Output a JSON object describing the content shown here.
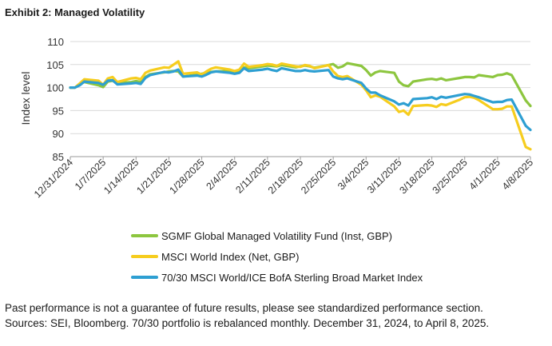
{
  "exhibit_title": "Exhibit 2: Managed Volatility",
  "chart_data": {
    "type": "line",
    "title": "Exhibit 2: Managed Volatility",
    "xlabel": "",
    "ylabel": "Index level",
    "ylim": [
      85,
      110
    ],
    "yticks": [
      85,
      90,
      95,
      100,
      105,
      110
    ],
    "grid": true,
    "x_start": "2024-12-31",
    "x_end": "2025-04-08",
    "x_ticks": [
      {
        "day": 0,
        "label": "12/31/2024"
      },
      {
        "day": 7,
        "label": "1/7/2025"
      },
      {
        "day": 14,
        "label": "1/14/2025"
      },
      {
        "day": 21,
        "label": "1/21/2025"
      },
      {
        "day": 28,
        "label": "1/28/2025"
      },
      {
        "day": 35,
        "label": "2/4/2025"
      },
      {
        "day": 42,
        "label": "2/11/2025"
      },
      {
        "day": 49,
        "label": "2/18/2025"
      },
      {
        "day": 56,
        "label": "2/25/2025"
      },
      {
        "day": 63,
        "label": "3/4/2025"
      },
      {
        "day": 70,
        "label": "3/11/2025"
      },
      {
        "day": 77,
        "label": "3/18/2025"
      },
      {
        "day": 84,
        "label": "3/25/2025"
      },
      {
        "day": 91,
        "label": "4/1/2025"
      },
      {
        "day": 98,
        "label": "4/8/2025"
      }
    ],
    "days": [
      0,
      1,
      2,
      3,
      6,
      7,
      8,
      9,
      10,
      13,
      14,
      15,
      16,
      17,
      20,
      21,
      22,
      23,
      24,
      27,
      28,
      29,
      30,
      31,
      34,
      35,
      36,
      37,
      38,
      41,
      42,
      43,
      44,
      45,
      48,
      49,
      50,
      51,
      52,
      55,
      56,
      57,
      58,
      59,
      62,
      63,
      64,
      65,
      66,
      69,
      70,
      71,
      72,
      73,
      76,
      77,
      78,
      79,
      80,
      83,
      84,
      85,
      86,
      87,
      90,
      91,
      92,
      93,
      94,
      97,
      98
    ],
    "series": [
      {
        "name": "SGMF Global Managed Volatility Fund (Inst, GBP)",
        "color": "#8dc63f",
        "values": [
          100.0,
          100.0,
          100.8,
          101.2,
          100.5,
          100.1,
          101.3,
          101.5,
          101.0,
          101.2,
          101.4,
          101.2,
          102.3,
          102.9,
          103.3,
          103.5,
          103.6,
          103.5,
          102.4,
          102.8,
          103.0,
          103.2,
          103.4,
          103.5,
          103.6,
          103.4,
          103.7,
          104.4,
          104.2,
          104.6,
          104.8,
          104.7,
          104.6,
          104.9,
          104.4,
          104.6,
          104.8,
          104.6,
          104.3,
          104.9,
          105.1,
          104.3,
          104.6,
          105.3,
          104.7,
          103.8,
          102.6,
          103.3,
          103.6,
          103.2,
          101.3,
          100.5,
          100.3,
          101.3,
          101.8,
          101.9,
          101.7,
          102.0,
          101.6,
          102.1,
          102.3,
          102.3,
          102.2,
          102.7,
          102.3,
          102.7,
          102.8,
          103.1,
          102.7,
          97.2,
          96.0
        ]
      },
      {
        "name": "MSCI World Index (Net, GBP)",
        "color": "#f6cd1e",
        "values": [
          100.0,
          100.0,
          100.9,
          101.8,
          101.5,
          100.6,
          102.0,
          102.3,
          101.2,
          102.0,
          102.1,
          101.8,
          103.2,
          103.7,
          104.4,
          104.3,
          105.0,
          105.7,
          103.0,
          103.3,
          102.8,
          103.5,
          104.1,
          104.4,
          103.9,
          103.6,
          103.9,
          105.2,
          104.5,
          104.9,
          105.1,
          105.0,
          104.7,
          105.2,
          104.6,
          104.5,
          104.9,
          104.7,
          104.2,
          104.9,
          103.5,
          102.5,
          102.3,
          102.5,
          100.6,
          99.4,
          97.9,
          98.3,
          98.0,
          95.9,
          94.7,
          95.0,
          94.1,
          96.0,
          96.2,
          96.1,
          95.8,
          96.4,
          96.2,
          97.4,
          97.9,
          98.0,
          97.8,
          97.3,
          95.3,
          95.3,
          95.4,
          95.9,
          95.9,
          87.1,
          86.6
        ]
      },
      {
        "name": "70/30 MSCI World/ICE BofA Sterling Broad Market Index",
        "color": "#2e9fd2",
        "values": [
          100.0,
          100.0,
          100.5,
          101.3,
          101.0,
          100.6,
          101.5,
          101.6,
          100.7,
          100.9,
          101.0,
          100.8,
          102.1,
          102.7,
          103.4,
          103.3,
          103.5,
          103.9,
          102.4,
          102.6,
          102.4,
          102.8,
          103.3,
          103.5,
          103.2,
          103.0,
          103.2,
          104.2,
          103.6,
          103.9,
          104.1,
          103.8,
          103.6,
          104.2,
          103.6,
          103.6,
          103.8,
          103.6,
          103.5,
          103.8,
          102.4,
          102.0,
          101.8,
          102.0,
          101.0,
          99.8,
          98.9,
          98.9,
          98.3,
          97.0,
          96.3,
          96.6,
          96.1,
          97.5,
          97.7,
          97.9,
          97.5,
          98.0,
          97.8,
          98.4,
          98.6,
          98.5,
          98.2,
          97.9,
          96.8,
          96.9,
          96.9,
          97.3,
          97.4,
          91.7,
          90.8
        ]
      }
    ]
  },
  "footer": {
    "line1": "Past performance is not a guarantee of future results, please see standardized performance section.",
    "line2": "Sources: SEI, Bloomberg. 70/30 portfolio is rebalanced monthly. December 31, 2024, to April 8, 2025."
  }
}
